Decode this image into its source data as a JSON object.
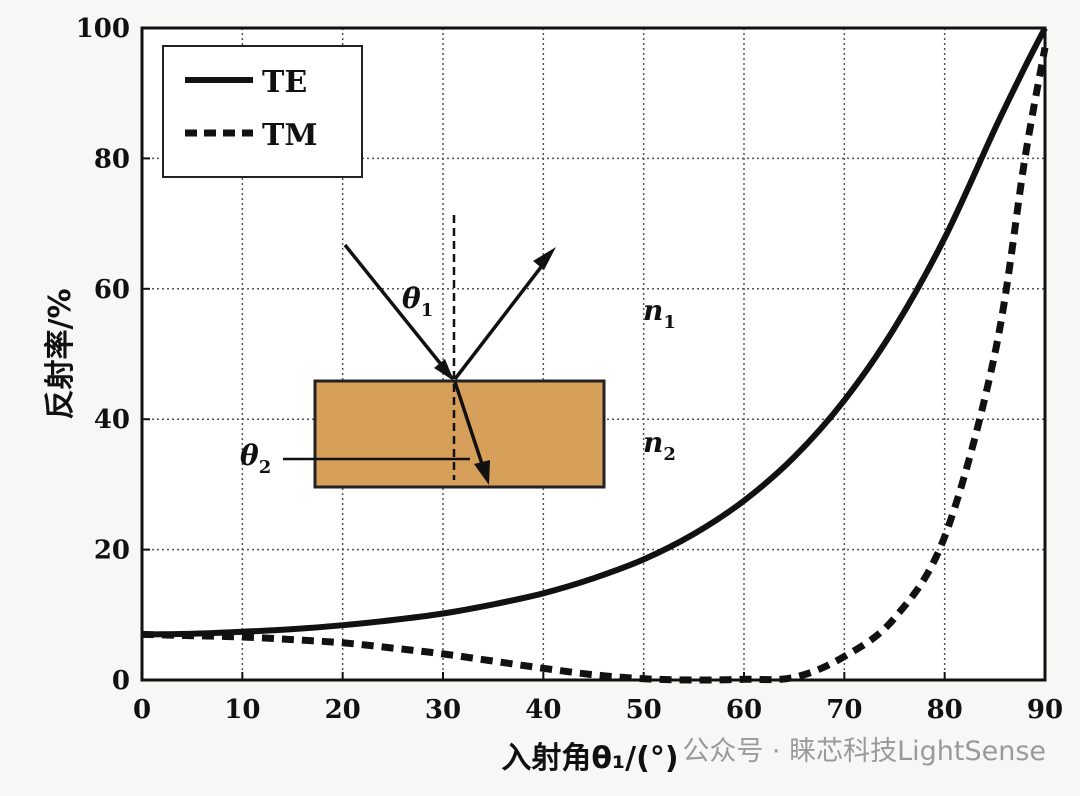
{
  "chart_data": {
    "type": "line",
    "xlabel": "入射角θ₁/(°)",
    "ylabel": "反射率/%",
    "xlim": [
      0,
      90
    ],
    "ylim": [
      0,
      100
    ],
    "xticks": [
      "0",
      "10",
      "20",
      "30",
      "40",
      "50",
      "60",
      "70",
      "80",
      "90"
    ],
    "yticks": [
      "0",
      "20",
      "40",
      "60",
      "80",
      "100"
    ],
    "grid": true,
    "legend_position": "top-left",
    "x": [
      0,
      5,
      10,
      15,
      20,
      25,
      30,
      35,
      40,
      45,
      50,
      55,
      60,
      65,
      70,
      75,
      80,
      85,
      88,
      90
    ],
    "series": [
      {
        "name": "TE",
        "style": "solid",
        "color": "#111111",
        "values": [
          7.0,
          7.1,
          7.4,
          7.8,
          8.4,
          9.2,
          10.2,
          11.6,
          13.3,
          15.6,
          18.5,
          22.4,
          27.5,
          34.2,
          42.9,
          54.0,
          67.8,
          84.5,
          94.0,
          100
        ]
      },
      {
        "name": "TM",
        "style": "dashed",
        "color": "#111111",
        "values": [
          7.0,
          6.8,
          6.6,
          6.2,
          5.7,
          4.9,
          4.0,
          2.9,
          1.8,
          0.8,
          0.2,
          0.0,
          0.1,
          0.4,
          3.6,
          9.5,
          22.0,
          50.0,
          80.0,
          97.0
        ]
      }
    ]
  },
  "inset": {
    "theta1_label": "θ",
    "theta1_sub": "1",
    "theta2_label": "θ",
    "theta2_sub": "2",
    "n1_label": "n",
    "n1_sub": "1",
    "n2_label": "n",
    "n2_sub": "2",
    "slab_color": "#d6a05b"
  },
  "watermark": "公众号 · 睐芯科技LightSense"
}
